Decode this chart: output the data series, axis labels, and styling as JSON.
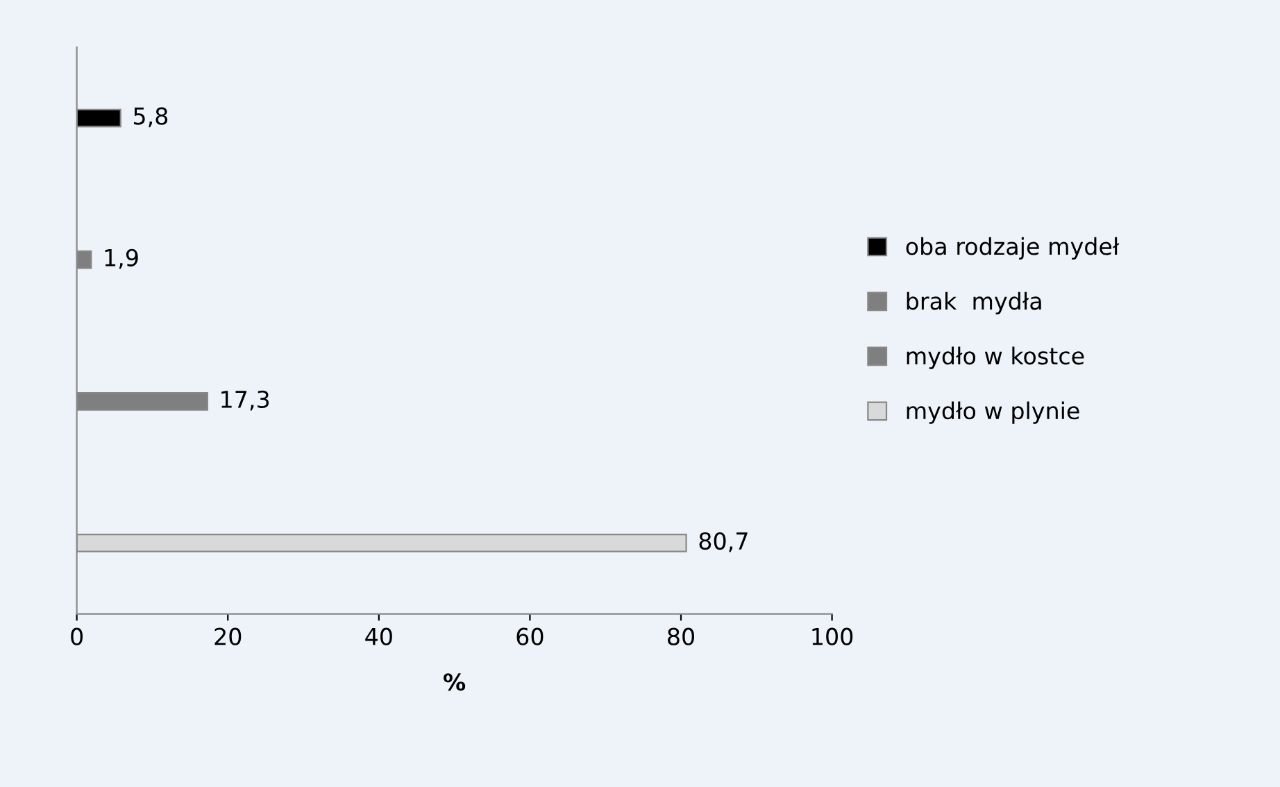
{
  "chart_data": {
    "type": "bar",
    "orientation": "horizontal",
    "xlabel": "%",
    "categories": [
      null,
      null,
      null,
      null
    ],
    "series": [
      {
        "name": "oba rodzaje mydeł",
        "color": "#000000",
        "values": [
          5.8,
          null,
          null,
          null
        ],
        "value_labels": [
          "5,8",
          null,
          null,
          null
        ]
      },
      {
        "name": "brak  mydła",
        "color": "#7f7f7f",
        "values": [
          null,
          1.9,
          null,
          null
        ],
        "value_labels": [
          null,
          "1,9",
          null,
          null
        ]
      },
      {
        "name": "mydło w kostce",
        "color": "#7f7f7f",
        "values": [
          null,
          null,
          17.3,
          null
        ],
        "value_labels": [
          null,
          null,
          "17,3",
          null
        ]
      },
      {
        "name": "mydło w plynie",
        "color": "#d9d9d9",
        "values": [
          null,
          null,
          null,
          80.7
        ],
        "value_labels": [
          null,
          null,
          null,
          "80,7"
        ]
      }
    ],
    "xlim": [
      0,
      100
    ],
    "xticks": [
      0,
      20,
      40,
      60,
      80,
      100
    ],
    "grid": false,
    "legend": "right"
  }
}
